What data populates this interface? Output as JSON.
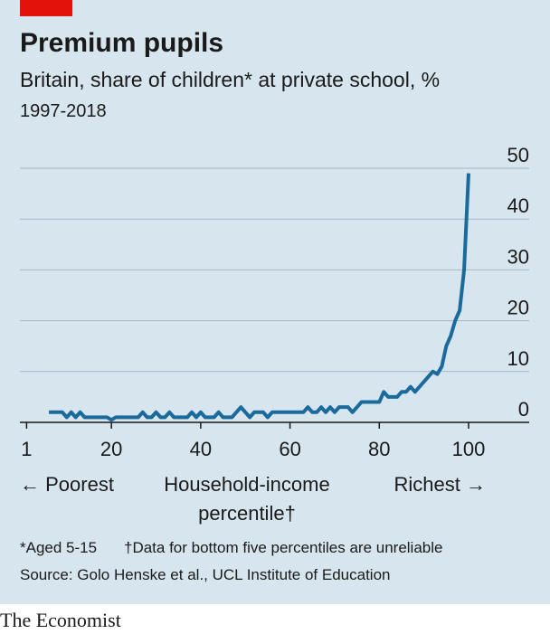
{
  "chart_data": {
    "type": "line",
    "title": "Premium pupils",
    "subtitle": "Britain, share of children* at private school, %",
    "period": "1997-2018",
    "xlabel": [
      "Household-income",
      "percentile†"
    ],
    "annotations": [
      "← Poorest",
      "Richest →"
    ],
    "footnotes": [
      "*Aged 5-15",
      "†Data for bottom five percentiles are unreliable"
    ],
    "source": "Source: Golo Henske et al., UCL Institute of Education",
    "color": "#1b6a9c",
    "x": [
      6,
      7,
      8,
      9,
      10,
      11,
      12,
      13,
      14,
      15,
      16,
      17,
      18,
      19,
      20,
      21,
      22,
      23,
      24,
      25,
      26,
      27,
      28,
      29,
      30,
      31,
      32,
      33,
      34,
      35,
      36,
      37,
      38,
      39,
      40,
      41,
      42,
      43,
      44,
      45,
      46,
      47,
      48,
      49,
      50,
      51,
      52,
      53,
      54,
      55,
      56,
      57,
      58,
      59,
      60,
      61,
      62,
      63,
      64,
      65,
      66,
      67,
      68,
      69,
      70,
      71,
      72,
      73,
      74,
      75,
      76,
      77,
      78,
      79,
      80,
      81,
      82,
      83,
      84,
      85,
      86,
      87,
      88,
      89,
      90,
      91,
      92,
      93,
      94,
      95,
      96,
      97,
      98,
      99,
      100
    ],
    "values": [
      2,
      2,
      2,
      2,
      1,
      2,
      1,
      2,
      1,
      1,
      1,
      1,
      1,
      1,
      0.5,
      1,
      1,
      1,
      1,
      1,
      1,
      2,
      1,
      1,
      2,
      1,
      1,
      2,
      1,
      1,
      1,
      1,
      2,
      1,
      2,
      1,
      1,
      1,
      2,
      1,
      1,
      1,
      2,
      3,
      2,
      1,
      2,
      2,
      2,
      1,
      2,
      2,
      2,
      2,
      2,
      2,
      2,
      2,
      3,
      2,
      2,
      3,
      2,
      3,
      2,
      3,
      3,
      3,
      2,
      3,
      4,
      4,
      4,
      4,
      4,
      6,
      5,
      5,
      5,
      6,
      6,
      7,
      6,
      7,
      8,
      9,
      10,
      9.5,
      11,
      15,
      17,
      20,
      22,
      30,
      49
    ],
    "xlim": [
      -0.5,
      107.5
    ],
    "xticks": [
      1,
      20,
      40,
      60,
      80,
      100
    ],
    "ylim": [
      0,
      50
    ],
    "yticks": [
      0,
      10,
      20,
      30,
      40,
      50
    ],
    "grid": true
  },
  "footer": "The Economist"
}
